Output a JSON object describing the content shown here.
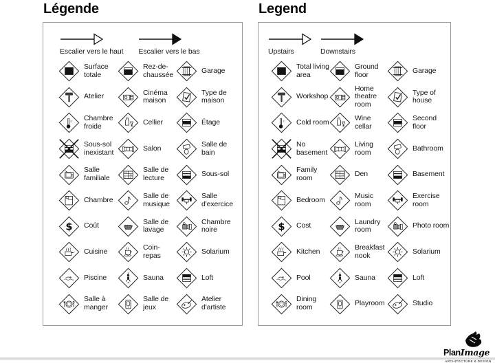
{
  "colors": {
    "ink": "#111111",
    "panel_border": "#9b9b9b",
    "label": "#161616",
    "page_edge": "#d6d6d6"
  },
  "panels": [
    {
      "id": "fr",
      "title": "Légende",
      "arrows": {
        "up_label": "Escalier vers le haut",
        "down_label": "Escalier vers le bas"
      },
      "items": [
        {
          "icon": "layers-full",
          "label": "Surface totale"
        },
        {
          "icon": "layers-ground",
          "label": "Rez-de-chaussée"
        },
        {
          "icon": "garage",
          "label": "Garage"
        },
        {
          "icon": "hammer",
          "label": "Atelier"
        },
        {
          "icon": "projector",
          "label": "Cinéma maison"
        },
        {
          "icon": "house-check",
          "label": "Type de maison"
        },
        {
          "icon": "thermometer",
          "label": "Chambre froide"
        },
        {
          "icon": "wine-bottle",
          "label": "Cellier"
        },
        {
          "icon": "layers-second",
          "label": "Étage"
        },
        {
          "icon": "no-basement",
          "label": "Sous-sol inexistant"
        },
        {
          "icon": "sofa",
          "label": "Salon"
        },
        {
          "icon": "toilet",
          "label": "Salle de bain"
        },
        {
          "icon": "tv",
          "label": "Salle familiale"
        },
        {
          "icon": "bookshelf",
          "label": "Salle de lecture"
        },
        {
          "icon": "layers-basement",
          "label": "Sous-sol"
        },
        {
          "icon": "bed",
          "label": "Chambre"
        },
        {
          "icon": "music-note",
          "label": "Salle de musique"
        },
        {
          "icon": "barbell",
          "label": "Salle d'exercice"
        },
        {
          "icon": "dollar-sign",
          "label": "Coût"
        },
        {
          "icon": "laundry-basin",
          "label": "Salle de lavage"
        },
        {
          "icon": "camera",
          "label": "Chambre noire"
        },
        {
          "icon": "cooking-pot",
          "label": "Cuisine"
        },
        {
          "icon": "coffee-cup",
          "label": "Coin-repas"
        },
        {
          "icon": "sun",
          "label": "Solarium"
        },
        {
          "icon": "swimmer",
          "label": "Piscine"
        },
        {
          "icon": "sauna-person",
          "label": "Sauna"
        },
        {
          "icon": "layers-loft",
          "label": "Loft"
        },
        {
          "icon": "plate-cutlery",
          "label": "Salle à manger"
        },
        {
          "icon": "arcade-machine",
          "label": "Salle de jeux"
        },
        {
          "icon": "palette",
          "label": "Atelier d'artiste"
        }
      ]
    },
    {
      "id": "en",
      "title": "Legend",
      "arrows": {
        "up_label": "Upstairs",
        "down_label": "Downstairs"
      },
      "items": [
        {
          "icon": "layers-full",
          "label": "Total living area"
        },
        {
          "icon": "layers-ground",
          "label": "Ground floor"
        },
        {
          "icon": "garage",
          "label": "Garage"
        },
        {
          "icon": "hammer",
          "label": "Workshop"
        },
        {
          "icon": "projector",
          "label": "Home theatre room"
        },
        {
          "icon": "house-check",
          "label": "Type of house"
        },
        {
          "icon": "thermometer",
          "label": "Cold room"
        },
        {
          "icon": "wine-bottle",
          "label": "Wine cellar"
        },
        {
          "icon": "layers-second",
          "label": "Second floor"
        },
        {
          "icon": "no-basement",
          "label": "No basement"
        },
        {
          "icon": "sofa",
          "label": "Living room"
        },
        {
          "icon": "toilet",
          "label": "Bathroom"
        },
        {
          "icon": "tv",
          "label": "Family room"
        },
        {
          "icon": "bookshelf",
          "label": "Den"
        },
        {
          "icon": "layers-basement",
          "label": "Basement"
        },
        {
          "icon": "bed",
          "label": "Bedroom"
        },
        {
          "icon": "music-note",
          "label": "Music room"
        },
        {
          "icon": "barbell",
          "label": "Exercise room"
        },
        {
          "icon": "dollar-sign",
          "label": "Cost"
        },
        {
          "icon": "laundry-basin",
          "label": "Laundry room"
        },
        {
          "icon": "camera",
          "label": "Photo room"
        },
        {
          "icon": "cooking-pot",
          "label": "Kitchen"
        },
        {
          "icon": "coffee-cup",
          "label": "Breakfast nook"
        },
        {
          "icon": "sun",
          "label": "Solarium"
        },
        {
          "icon": "swimmer",
          "label": "Pool"
        },
        {
          "icon": "sauna-person",
          "label": "Sauna"
        },
        {
          "icon": "layers-loft",
          "label": "Loft"
        },
        {
          "icon": "plate-cutlery",
          "label": "Dining room"
        },
        {
          "icon": "arcade-machine",
          "label": "Playroom"
        },
        {
          "icon": "palette",
          "label": "Studio"
        }
      ]
    }
  ],
  "logo": {
    "brand_plan": "Plan",
    "brand_image": "Image",
    "tagline": "ARCHITECTURE & DESIGN"
  }
}
